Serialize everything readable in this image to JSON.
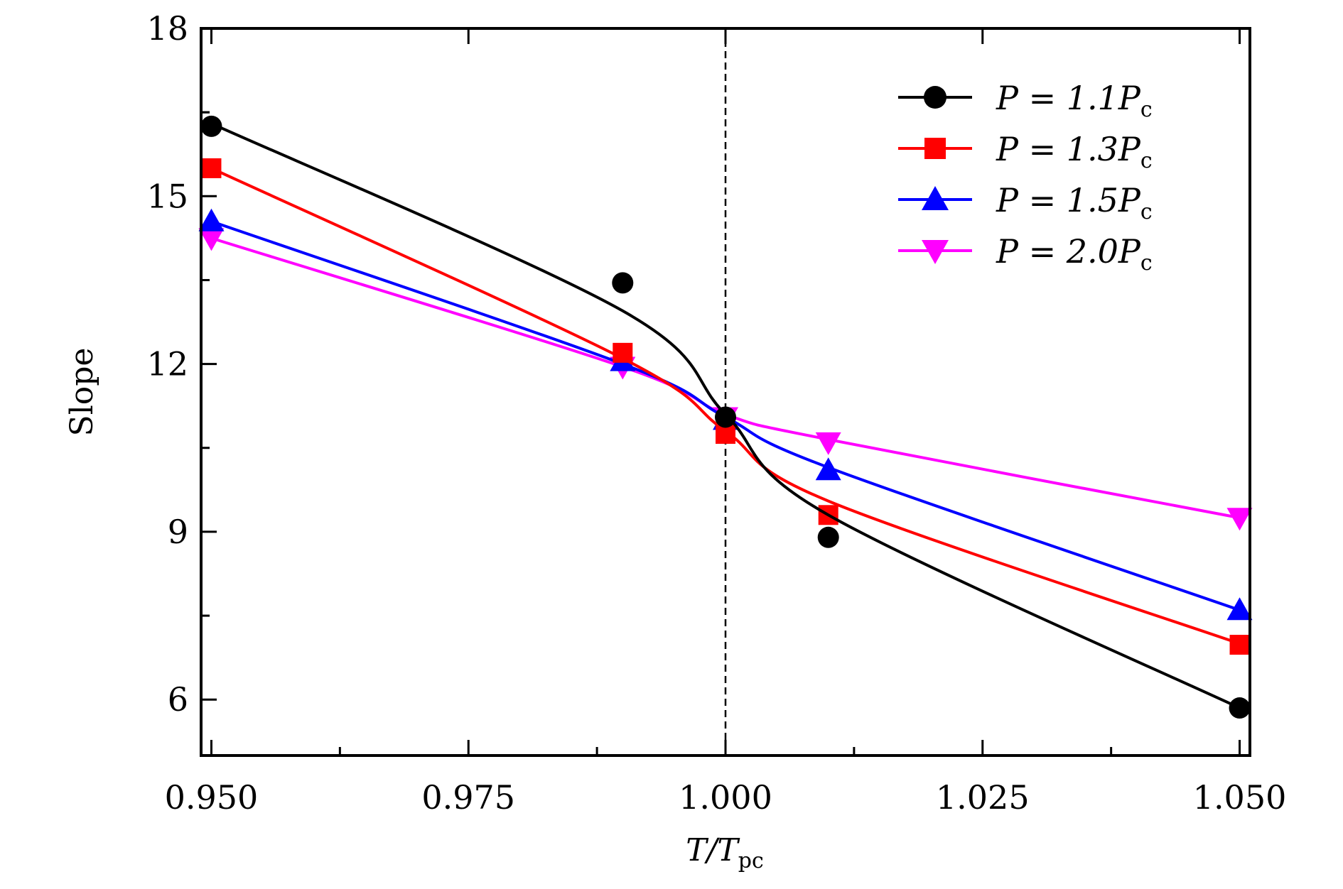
{
  "chart_data": {
    "type": "line",
    "title": "",
    "xlabel": "T/T_pc",
    "xlabel_main": "T/T",
    "xlabel_sub": "pc",
    "ylabel": "Slope",
    "xlim": [
      0.949,
      1.051
    ],
    "ylim": [
      5.0,
      18.0
    ],
    "x_ticks": [
      0.95,
      0.975,
      1.0,
      1.025,
      1.05
    ],
    "x_tick_labels": [
      "0.950",
      "0.975",
      "1.000",
      "1.025",
      "1.050"
    ],
    "y_ticks": [
      6,
      9,
      12,
      15,
      18
    ],
    "y_tick_labels": [
      "6",
      "9",
      "12",
      "15",
      "18"
    ],
    "grid": false,
    "legend_position": "top-right",
    "reference_line": {
      "x": 1.0,
      "style": "dashed"
    },
    "x": [
      0.95,
      0.99,
      1.0,
      1.01,
      1.05
    ],
    "series": [
      {
        "name": "P = 1.1P_c",
        "label_main": "P = 1.1P",
        "label_sub": "c",
        "color": "#000000",
        "marker": "circle",
        "values": [
          16.25,
          13.45,
          11.05,
          8.9,
          5.85
        ],
        "fit": [
          16.3,
          12.95,
          11.1,
          9.3,
          5.85
        ]
      },
      {
        "name": "P = 1.3P_c",
        "label_main": "P = 1.3P",
        "label_sub": "c",
        "color": "#ff0000",
        "marker": "square",
        "values": [
          15.5,
          12.2,
          10.75,
          9.3,
          6.98
        ],
        "fit": [
          15.5,
          12.1,
          10.8,
          9.55,
          7.0
        ]
      },
      {
        "name": "P = 1.5P_c",
        "label_main": "P = 1.5P",
        "label_sub": "c",
        "color": "#0000ff",
        "marker": "triangle-up",
        "values": [
          14.55,
          12.05,
          11.0,
          10.1,
          7.6
        ],
        "fit": [
          14.55,
          12.0,
          11.05,
          10.15,
          7.6
        ]
      },
      {
        "name": "P = 2.0P_c",
        "label_main": "P = 2.0P",
        "label_sub": "c",
        "color": "#ff00ff",
        "marker": "triangle-down",
        "values": [
          14.25,
          11.95,
          11.05,
          10.6,
          9.25
        ],
        "fit": [
          14.25,
          11.95,
          11.1,
          10.65,
          9.25
        ]
      }
    ]
  }
}
